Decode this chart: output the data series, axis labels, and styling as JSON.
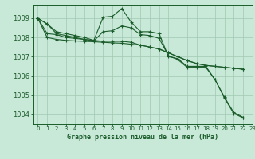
{
  "xlabel": "Graphe pression niveau de la mer (hPa)",
  "ylim": [
    1003.5,
    1009.7
  ],
  "xlim": [
    -0.5,
    23
  ],
  "yticks": [
    1004,
    1005,
    1006,
    1007,
    1008,
    1009
  ],
  "xticks": [
    0,
    1,
    2,
    3,
    4,
    5,
    6,
    7,
    8,
    9,
    10,
    11,
    12,
    13,
    14,
    15,
    16,
    17,
    18,
    19,
    20,
    21,
    22,
    23
  ],
  "bg_color": "#c8e8d8",
  "grid_color": "#a0c8b0",
  "line_color": "#1a5c2a",
  "series": [
    [
      1009.0,
      1008.7,
      1008.3,
      1008.2,
      1008.1,
      1008.0,
      1007.85,
      1009.05,
      1009.1,
      1009.5,
      1008.8,
      1008.3,
      1008.3,
      1008.2,
      1007.0,
      1006.9,
      1006.5,
      1006.5,
      1006.5,
      1005.8,
      1004.9,
      1004.1,
      1003.85
    ],
    [
      1009.0,
      1008.7,
      1008.2,
      1008.1,
      1008.0,
      1007.9,
      1007.82,
      1008.3,
      1008.35,
      1008.6,
      1008.5,
      1008.15,
      1008.1,
      1007.95,
      1007.05,
      1006.85,
      1006.45,
      1006.45,
      1006.45,
      1005.8,
      1004.85,
      1004.05,
      1003.82
    ],
    [
      1009.0,
      1008.2,
      1008.15,
      1008.0,
      1007.95,
      1007.9,
      1007.85,
      1007.8,
      1007.8,
      1007.8,
      1007.75,
      1007.6,
      1007.5,
      1007.4,
      1007.2,
      1007.0,
      1006.8,
      1006.65,
      1006.55,
      1006.5,
      1006.45,
      1006.4,
      1006.35
    ],
    [
      1009.0,
      1008.0,
      1007.9,
      1007.85,
      1007.82,
      1007.8,
      1007.78,
      1007.75,
      1007.72,
      1007.7,
      1007.65,
      1007.6,
      1007.5,
      1007.4,
      1007.2,
      1007.0,
      1006.8,
      1006.65,
      1006.55,
      1006.5,
      1006.45,
      1006.4,
      1006.35
    ]
  ],
  "xlabel_fontsize": 6.0,
  "ytick_fontsize": 6.0,
  "xtick_fontsize": 5.0
}
